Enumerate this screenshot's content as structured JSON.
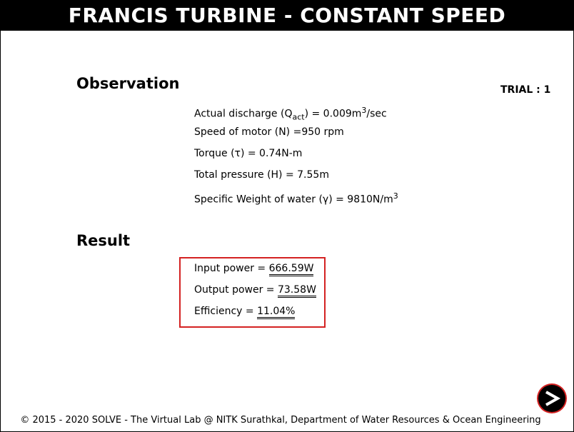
{
  "header": {
    "title": "FRANCIS TURBINE - CONSTANT SPEED"
  },
  "trial": {
    "label": "TRIAL : 1"
  },
  "observation": {
    "heading": "Observation",
    "discharge": {
      "label": "Actual discharge (Q",
      "subscript": "act",
      "middle": ") = 0.009m",
      "superscript": "3",
      "tail": "/sec"
    },
    "speed": "Speed of motor (N) =950 rpm",
    "torque": "Torque (τ) = 0.74N-m",
    "pressure": "Total pressure (H) = 7.55m",
    "specific_weight": {
      "label": "Specific Weight of water (γ) = 9810N/m",
      "superscript": "3"
    }
  },
  "result": {
    "heading": "Result",
    "input_power": {
      "label": "Input power = ",
      "value": "666.59W"
    },
    "output_power": {
      "label": "Output power = ",
      "value": "73.58W"
    },
    "efficiency": {
      "label": "Efficiency = ",
      "value": "11.04%"
    }
  },
  "navigation": {
    "next_icon": "arrow-right-icon"
  },
  "footer": {
    "text": "© 2015 - 2020 SOLVE - The Virtual Lab @ NITK Surathkal, Department of Water Resources & Ocean Engineering"
  },
  "colors": {
    "title_bar_background": "#000000",
    "title_text": "#ffffff",
    "result_box_border": "#d42222"
  }
}
